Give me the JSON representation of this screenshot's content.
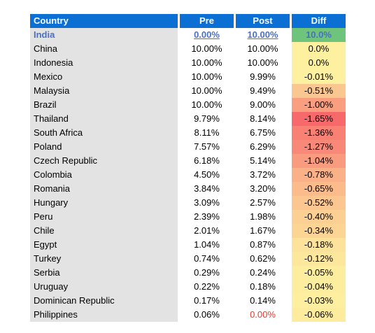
{
  "chart_data": {
    "type": "table",
    "columns": [
      "Country",
      "Pre",
      "Post",
      "Diff"
    ],
    "rows": [
      {
        "country": "India",
        "pre": "0.00%",
        "post": "10.00%",
        "diff": "10.0%",
        "diff_value": 10.0
      },
      {
        "country": "China",
        "pre": "10.00%",
        "post": "10.00%",
        "diff": "0.0%",
        "diff_value": 0.0
      },
      {
        "country": "Indonesia",
        "pre": "10.00%",
        "post": "10.00%",
        "diff": "0.0%",
        "diff_value": 0.0
      },
      {
        "country": "Mexico",
        "pre": "10.00%",
        "post": "9.99%",
        "diff": "-0.01%",
        "diff_value": -0.01
      },
      {
        "country": "Malaysia",
        "pre": "10.00%",
        "post": "9.49%",
        "diff": "-0.51%",
        "diff_value": -0.51
      },
      {
        "country": "Brazil",
        "pre": "10.00%",
        "post": "9.00%",
        "diff": "-1.00%",
        "diff_value": -1.0
      },
      {
        "country": "Thailand",
        "pre": "9.79%",
        "post": "8.14%",
        "diff": "-1.65%",
        "diff_value": -1.65
      },
      {
        "country": "South Africa",
        "pre": "8.11%",
        "post": "6.75%",
        "diff": "-1.36%",
        "diff_value": -1.36
      },
      {
        "country": "Poland",
        "pre": "7.57%",
        "post": "6.29%",
        "diff": "-1.27%",
        "diff_value": -1.27
      },
      {
        "country": "Czech Republic",
        "pre": "6.18%",
        "post": "5.14%",
        "diff": "-1.04%",
        "diff_value": -1.04
      },
      {
        "country": "Colombia",
        "pre": "4.50%",
        "post": "3.72%",
        "diff": "-0.78%",
        "diff_value": -0.78
      },
      {
        "country": "Romania",
        "pre": "3.84%",
        "post": "3.20%",
        "diff": "-0.65%",
        "diff_value": -0.65
      },
      {
        "country": "Hungary",
        "pre": "3.09%",
        "post": "2.57%",
        "diff": "-0.52%",
        "diff_value": -0.52
      },
      {
        "country": "Peru",
        "pre": "2.39%",
        "post": "1.98%",
        "diff": "-0.40%",
        "diff_value": -0.4
      },
      {
        "country": "Chile",
        "pre": "2.01%",
        "post": "1.67%",
        "diff": "-0.34%",
        "diff_value": -0.34
      },
      {
        "country": "Egypt",
        "pre": "1.04%",
        "post": "0.87%",
        "diff": "-0.18%",
        "diff_value": -0.18
      },
      {
        "country": "Turkey",
        "pre": "0.74%",
        "post": "0.62%",
        "diff": "-0.12%",
        "diff_value": -0.12
      },
      {
        "country": "Serbia",
        "pre": "0.29%",
        "post": "0.24%",
        "diff": "-0.05%",
        "diff_value": -0.05
      },
      {
        "country": "Uruguay",
        "pre": "0.22%",
        "post": "0.18%",
        "diff": "-0.04%",
        "diff_value": -0.04
      },
      {
        "country": "Dominican Republic",
        "pre": "0.17%",
        "post": "0.14%",
        "diff": "-0.03%",
        "diff_value": -0.03
      },
      {
        "country": "Philippines",
        "pre": "0.06%",
        "post": "0.00%",
        "diff": "-0.06%",
        "diff_value": -0.06
      }
    ],
    "highlight_row": "India",
    "header_color": "#0b6fd4",
    "country_column_color": "#e3e3e3",
    "highlight_diff_color": "#6ec47b",
    "highlight_text_color": "#4a6fc4",
    "negative_post_color": "#e23b2b",
    "diff_color_scale": {
      "zero": "#fdf1a0",
      "min": "#f7696b",
      "min_value": -1.65
    }
  }
}
